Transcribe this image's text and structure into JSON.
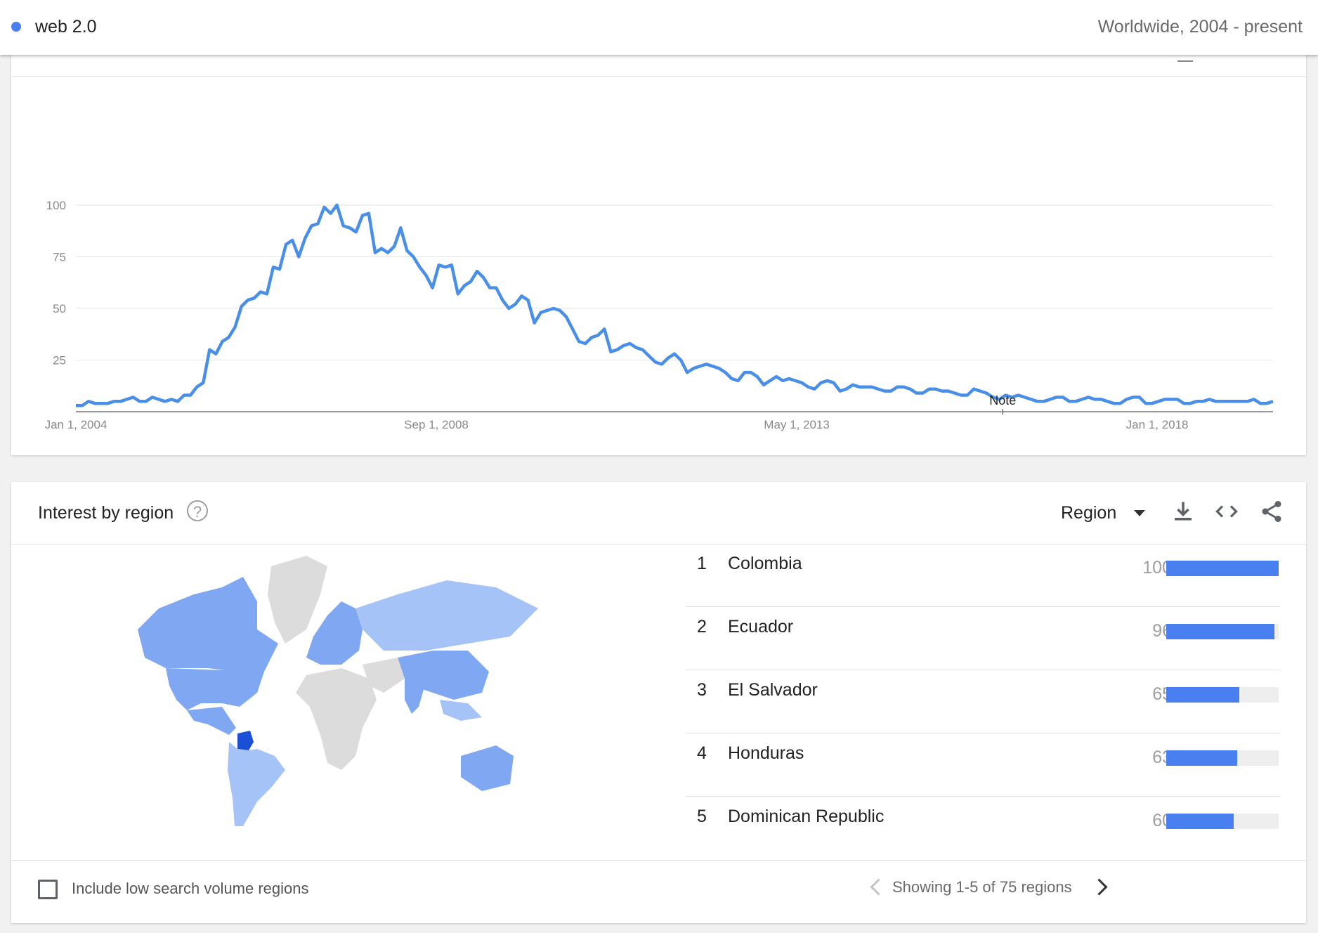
{
  "header": {
    "term": "web 2.0",
    "term_color": "#4a7ff0",
    "scope": "Worldwide, 2004 - present"
  },
  "chart_data": {
    "type": "line",
    "title": "",
    "xlabel": "",
    "ylabel": "",
    "ylim": [
      0,
      100
    ],
    "yticks": [
      "100",
      "75",
      "50",
      "25"
    ],
    "xticks": [
      "Jan 1, 2004",
      "Sep 1, 2008",
      "May 1, 2013",
      "Jan 1, 2018"
    ],
    "grid": true,
    "series_color": "#4a8fe7",
    "annotation": {
      "label": "Note",
      "date": "2016-01-01"
    },
    "x_start": "2004-01",
    "x_end": "2019-07",
    "series": [
      {
        "values": [
          3,
          3,
          5,
          4,
          4,
          4,
          5,
          5,
          6,
          7,
          5,
          5,
          7,
          6,
          5,
          6,
          5,
          8,
          8,
          12,
          14,
          30,
          28,
          34,
          36,
          41,
          51,
          54,
          55,
          58,
          57,
          70,
          69,
          81,
          83,
          75,
          84,
          90,
          91,
          99,
          96,
          100,
          90,
          89,
          87,
          95,
          96,
          77,
          79,
          77,
          80,
          89,
          78,
          75,
          70,
          66,
          60,
          71,
          70,
          71,
          57,
          61,
          63,
          68,
          65,
          60,
          60,
          54,
          50,
          52,
          56,
          54,
          43,
          48,
          49,
          50,
          49,
          46,
          40,
          34,
          33,
          36,
          37,
          40,
          29,
          30,
          32,
          33,
          31,
          30,
          27,
          24,
          23,
          26,
          28,
          25,
          19,
          21,
          22,
          23,
          22,
          21,
          19,
          16,
          15,
          19,
          19,
          17,
          13,
          15,
          17,
          15,
          16,
          15,
          14,
          12,
          11,
          14,
          15,
          14,
          10,
          11,
          13,
          12,
          12,
          12,
          11,
          10,
          10,
          12,
          12,
          11,
          9,
          9,
          11,
          11,
          10,
          10,
          9,
          8,
          8,
          11,
          10,
          9,
          7,
          6,
          8,
          7,
          8,
          7,
          6,
          5,
          5,
          6,
          7,
          7,
          5,
          5,
          6,
          7,
          6,
          6,
          5,
          4,
          4,
          6,
          7,
          7,
          4,
          4,
          5,
          6,
          6,
          6,
          4,
          4,
          5,
          5,
          6,
          5,
          5,
          5,
          5,
          5,
          5,
          6,
          4,
          4,
          5
        ]
      }
    ]
  },
  "region": {
    "title": "Interest by region",
    "select_label": "Region",
    "rows": [
      {
        "rank": "1",
        "name": "Colombia",
        "value": "100",
        "fraction": 1.0
      },
      {
        "rank": "2",
        "name": "Ecuador",
        "value": "96",
        "fraction": 0.96
      },
      {
        "rank": "3",
        "name": "El Salvador",
        "value": "65",
        "fraction": 0.65
      },
      {
        "rank": "4",
        "name": "Honduras",
        "value": "63",
        "fraction": 0.63
      },
      {
        "rank": "5",
        "name": "Dominican Republic",
        "value": "60",
        "fraction": 0.6
      }
    ],
    "checkbox_label": "Include low search volume regions",
    "pager_text": "Showing 1-5 of 75 regions",
    "bar_color": "#4a7ff0"
  }
}
